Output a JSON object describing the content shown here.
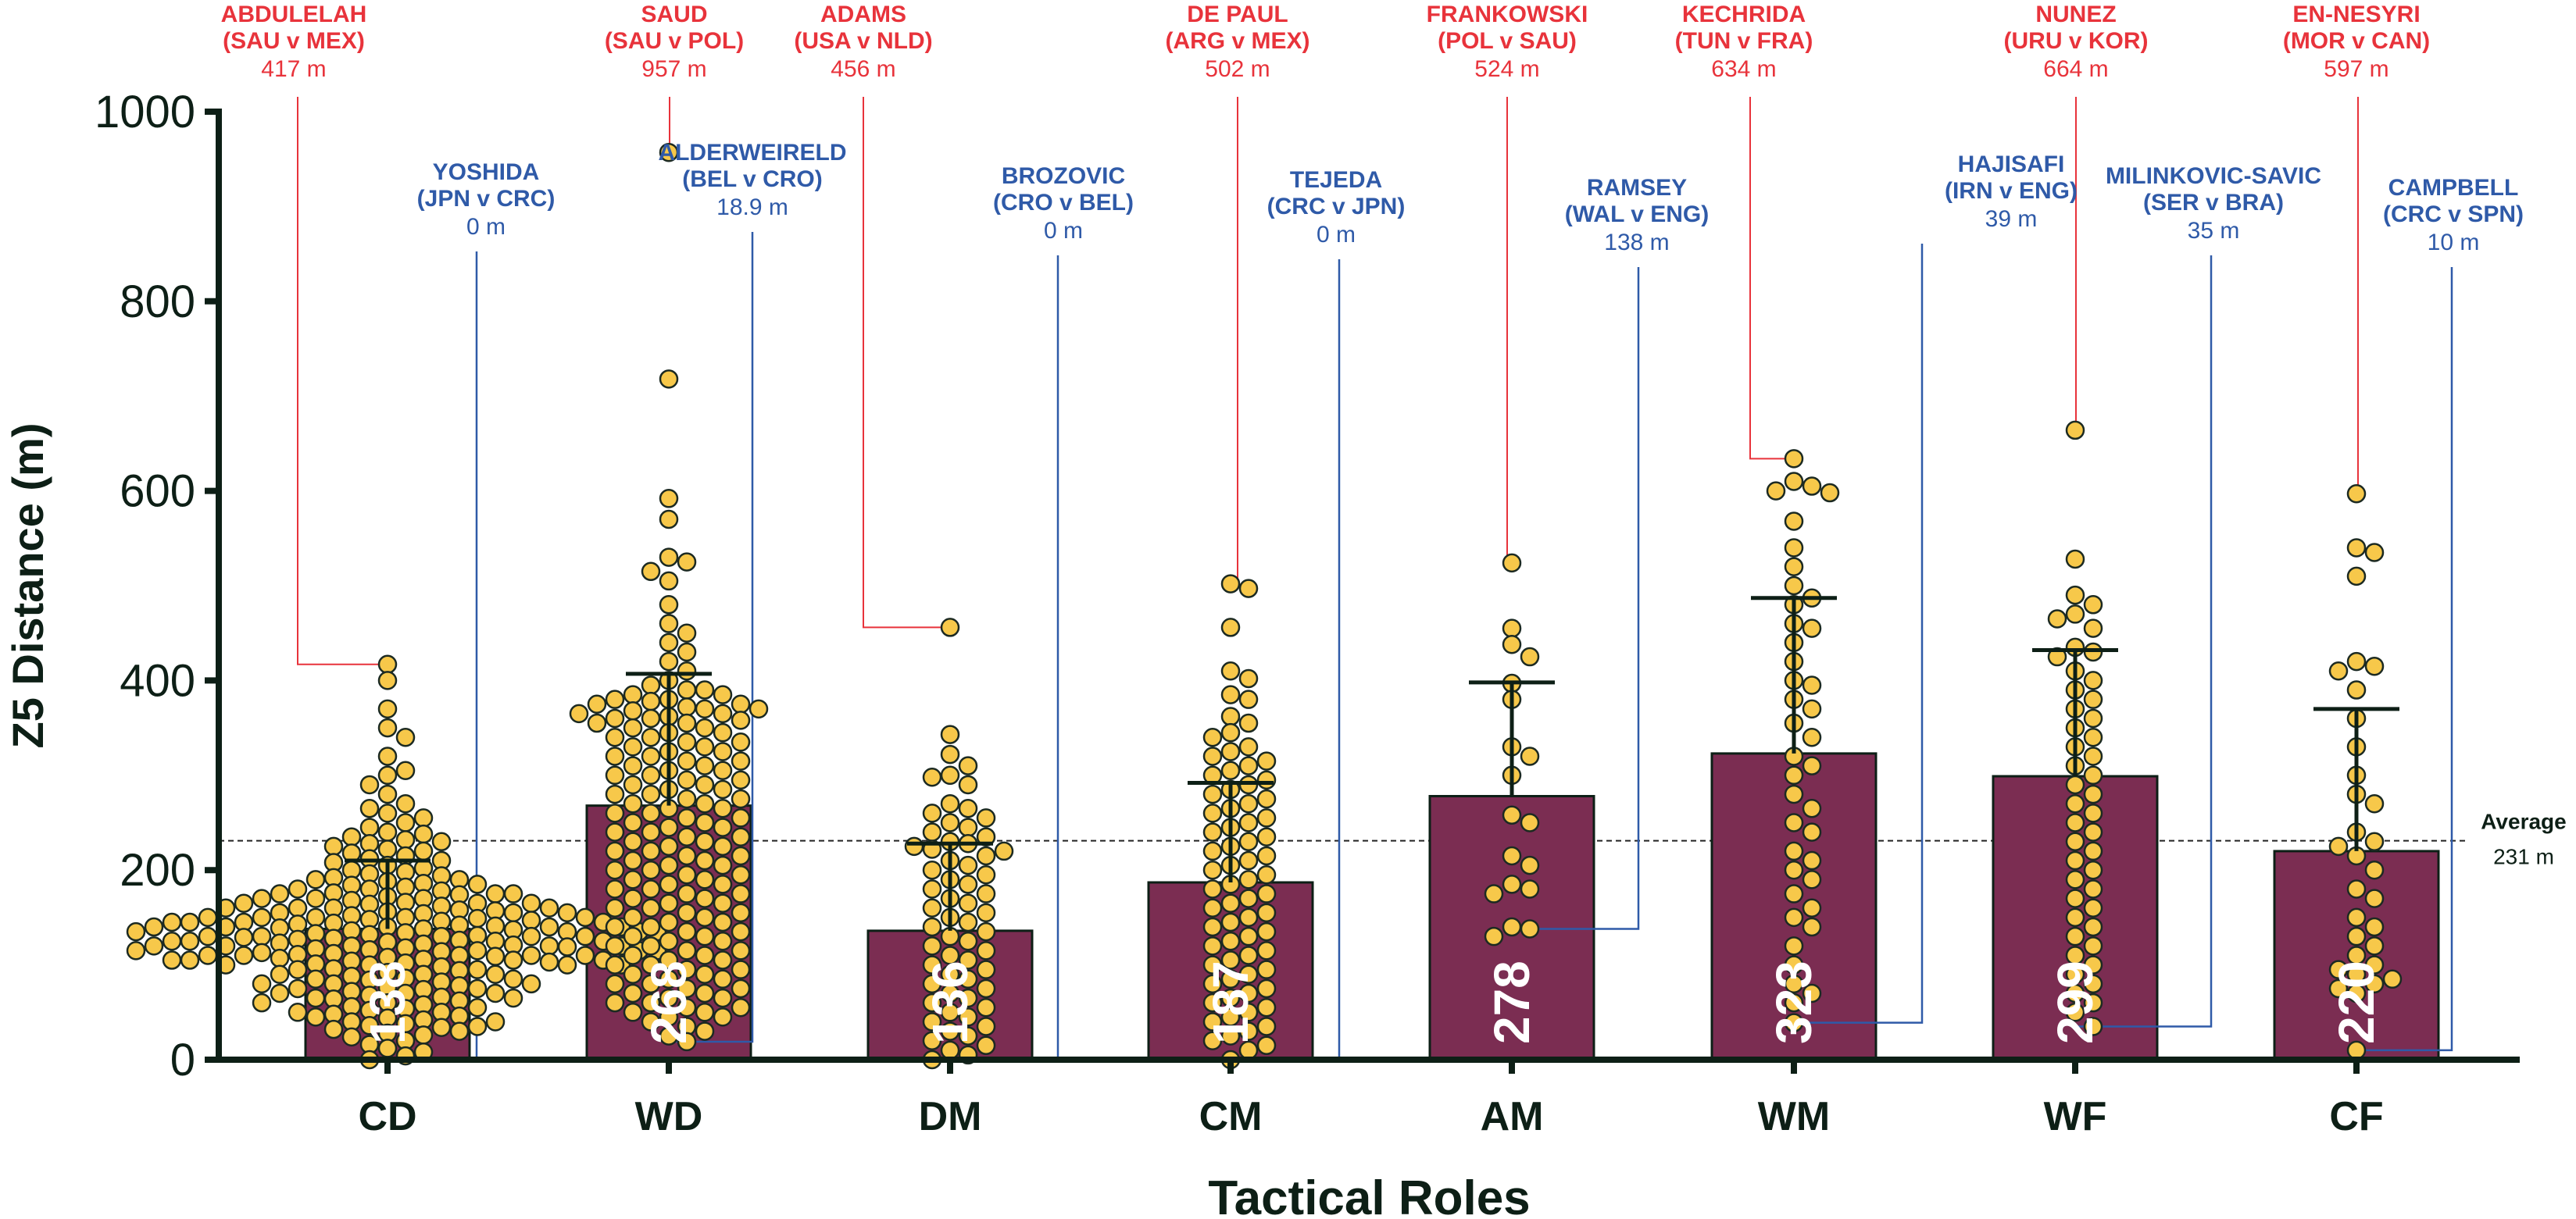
{
  "chart_data": {
    "type": "bar",
    "title": "",
    "xlabel": "Tactical Roles",
    "ylabel": "Z5 Distance (m)",
    "ylim": [
      0,
      1000
    ],
    "yticks": [
      0,
      200,
      400,
      600,
      800,
      1000
    ],
    "grid": false,
    "categories": [
      "CD",
      "WD",
      "DM",
      "CM",
      "AM",
      "WM",
      "WF",
      "CF"
    ],
    "values": [
      138,
      268,
      136,
      187,
      278,
      323,
      299,
      220
    ],
    "value_labels": [
      "138",
      "268",
      "136",
      "187",
      "278",
      "323",
      "299",
      "220"
    ],
    "error_upper": [
      210,
      407,
      228,
      292,
      398,
      487,
      432,
      370
    ],
    "bar_color": "#7b2d52",
    "point_color": "#f7c84a",
    "reference_line": {
      "label": "Average",
      "value": 231,
      "value_label": "231 m"
    },
    "max_annotations": [
      {
        "player": "ABDULELAH",
        "match": "(SAU v MEX)",
        "distance": 417,
        "distance_label": "417 m"
      },
      {
        "player": "SAUD",
        "match": "(SAU v POL)",
        "distance": 957,
        "distance_label": "957 m"
      },
      {
        "player": "ADAMS",
        "match": "(USA v NLD)",
        "distance": 456,
        "distance_label": "456 m"
      },
      {
        "player": "DE PAUL",
        "match": "(ARG v MEX)",
        "distance": 502,
        "distance_label": "502 m"
      },
      {
        "player": "FRANKOWSKI",
        "match": "(POL v SAU)",
        "distance": 524,
        "distance_label": "524 m"
      },
      {
        "player": "KECHRIDA",
        "match": "(TUN v FRA)",
        "distance": 634,
        "distance_label": "634 m"
      },
      {
        "player": "NUNEZ",
        "match": "(URU v KOR)",
        "distance": 664,
        "distance_label": "664 m"
      },
      {
        "player": "EN-NESYRI",
        "match": "(MOR v CAN)",
        "distance": 597,
        "distance_label": "597 m"
      }
    ],
    "min_annotations": [
      {
        "player": "YOSHIDA",
        "match": "(JPN v CRC)",
        "distance": 0,
        "distance_label": "0 m"
      },
      {
        "player": "ALDERWEIRELD",
        "match": "(BEL v CRO)",
        "distance": 18.9,
        "distance_label": "18.9 m"
      },
      {
        "player": "BROZOVIC",
        "match": "(CRO v BEL)",
        "distance": 0,
        "distance_label": "0 m"
      },
      {
        "player": "TEJEDA",
        "match": "(CRC v JPN)",
        "distance": 0,
        "distance_label": "0 m"
      },
      {
        "player": "RAMSEY",
        "match": "(WAL v ENG)",
        "distance": 138,
        "distance_label": "138 m"
      },
      {
        "player": "HAJISAFI",
        "match": "(IRN v ENG)",
        "distance": 39,
        "distance_label": "39 m"
      },
      {
        "player": "MILINKOVIC-SAVIC",
        "match": "(SER v BRA)",
        "distance": 35,
        "distance_label": "35 m"
      },
      {
        "player": "CAMPBELL",
        "match": "(CRC v SPN)",
        "distance": 10,
        "distance_label": "10 m"
      }
    ],
    "max_color": "#e8333b",
    "min_color": "#2f5aa8",
    "points": {
      "CD": [
        417,
        400,
        370,
        350,
        340,
        320,
        305,
        300,
        290,
        280,
        270,
        265,
        260,
        255,
        250,
        245,
        240,
        238,
        235,
        232,
        230,
        228,
        225,
        222,
        220,
        218,
        215,
        212,
        210,
        208,
        205,
        202,
        200,
        198,
        196,
        194,
        192,
        190,
        188,
        186,
        184,
        182,
        180,
        178,
        176,
        175,
        174,
        172,
        170,
        168,
        166,
        165,
        164,
        162,
        160,
        158,
        157,
        156,
        155,
        154,
        152,
        150,
        149,
        148,
        147,
        146,
        145,
        144,
        143,
        142,
        141,
        140,
        139,
        138,
        137,
        136,
        135,
        134,
        133,
        132,
        131,
        130,
        129,
        128,
        127,
        126,
        125,
        124,
        123,
        122,
        121,
        120,
        119,
        118,
        117,
        116,
        115,
        114,
        113,
        112,
        111,
        110,
        109,
        108,
        107,
        106,
        105,
        104,
        103,
        102,
        101,
        100,
        98,
        96,
        94,
        92,
        90,
        88,
        86,
        84,
        82,
        80,
        78,
        76,
        74,
        72,
        70,
        68,
        66,
        64,
        62,
        60,
        58,
        56,
        54,
        52,
        50,
        48,
        46,
        44,
        42,
        40,
        38,
        36,
        34,
        32,
        30,
        28,
        26,
        24,
        20,
        16,
        12,
        8,
        4,
        0,
        150,
        145,
        140,
        135,
        130,
        125,
        120,
        115,
        110,
        105,
        100,
        95,
        90,
        85,
        80,
        75,
        70,
        65,
        160,
        155,
        150,
        145,
        140,
        135,
        130,
        125,
        120,
        115,
        110,
        105,
        170,
        165,
        160,
        150,
        140,
        130,
        120,
        110,
        100,
        90,
        80,
        70,
        60,
        50,
        40,
        180,
        175,
        170,
        160,
        150,
        140,
        130,
        120,
        110,
        100,
        190,
        185,
        175,
        165,
        155,
        145,
        135,
        125,
        115,
        105,
        95,
        85,
        75,
        65,
        55,
        45,
        35
      ],
      "WD": [
        957,
        718,
        592,
        570,
        530,
        525,
        515,
        505,
        480,
        460,
        450,
        440,
        430,
        420,
        410,
        400,
        395,
        390,
        385,
        380,
        378,
        375,
        372,
        370,
        368,
        365,
        362,
        360,
        358,
        355,
        350,
        345,
        340,
        335,
        330,
        325,
        320,
        315,
        310,
        305,
        300,
        295,
        290,
        285,
        280,
        275,
        270,
        265,
        260,
        255,
        250,
        245,
        240,
        235,
        230,
        225,
        220,
        215,
        210,
        205,
        200,
        195,
        190,
        185,
        180,
        175,
        170,
        165,
        160,
        155,
        150,
        145,
        140,
        135,
        130,
        125,
        120,
        115,
        110,
        105,
        100,
        95,
        90,
        85,
        80,
        75,
        70,
        65,
        60,
        55,
        50,
        45,
        40,
        35,
        30,
        25,
        19,
        385,
        375,
        365,
        355,
        345,
        335,
        325,
        315,
        305,
        295,
        285,
        275,
        265,
        255,
        245,
        235,
        225,
        215,
        205,
        195,
        185,
        175,
        165,
        155,
        145,
        135,
        125,
        115,
        105,
        95,
        85,
        75,
        65,
        55,
        45,
        390,
        380,
        370,
        360,
        350,
        340,
        330,
        320,
        310,
        300,
        290,
        280,
        270,
        260,
        250,
        240,
        230,
        220,
        210,
        200,
        190,
        180,
        170,
        160,
        150,
        140,
        130,
        120,
        110,
        100,
        90,
        80,
        70,
        60,
        50
      ],
      "DM": [
        456,
        343,
        322,
        310,
        300,
        298,
        290,
        270,
        265,
        260,
        255,
        250,
        245,
        240,
        235,
        230,
        228,
        225,
        222,
        220,
        215,
        210,
        205,
        200,
        195,
        190,
        185,
        180,
        175,
        170,
        165,
        160,
        155,
        150,
        145,
        140,
        135,
        130,
        125,
        120,
        115,
        110,
        105,
        100,
        95,
        90,
        85,
        80,
        75,
        70,
        65,
        60,
        55,
        50,
        45,
        40,
        35,
        30,
        25,
        20,
        15,
        10,
        5,
        0
      ],
      "CM": [
        502,
        497,
        456,
        410,
        402,
        385,
        380,
        362,
        355,
        345,
        340,
        330,
        325,
        320,
        315,
        310,
        305,
        300,
        295,
        290,
        285,
        280,
        275,
        270,
        265,
        260,
        255,
        250,
        245,
        240,
        235,
        230,
        225,
        220,
        215,
        210,
        205,
        200,
        195,
        190,
        185,
        180,
        175,
        170,
        165,
        160,
        155,
        150,
        145,
        140,
        135,
        130,
        125,
        120,
        115,
        110,
        105,
        100,
        95,
        90,
        85,
        80,
        75,
        70,
        65,
        60,
        55,
        50,
        45,
        40,
        35,
        30,
        25,
        20,
        15,
        10,
        0
      ],
      "AM": [
        524,
        455,
        438,
        425,
        397,
        380,
        330,
        320,
        300,
        258,
        250,
        215,
        205,
        185,
        180,
        175,
        140,
        138,
        130
      ],
      "WM": [
        634,
        610,
        605,
        600,
        598,
        568,
        540,
        520,
        500,
        487,
        480,
        460,
        455,
        440,
        420,
        400,
        395,
        380,
        370,
        355,
        340,
        320,
        310,
        300,
        280,
        265,
        250,
        240,
        220,
        210,
        200,
        190,
        175,
        160,
        150,
        140,
        120,
        100,
        80,
        70,
        60,
        39
      ],
      "WF": [
        664,
        528,
        490,
        480,
        470,
        465,
        455,
        435,
        430,
        425,
        410,
        400,
        390,
        380,
        370,
        360,
        350,
        340,
        330,
        320,
        310,
        300,
        290,
        280,
        270,
        260,
        250,
        240,
        230,
        220,
        210,
        200,
        190,
        180,
        170,
        160,
        150,
        140,
        130,
        120,
        110,
        100,
        90,
        80,
        70,
        60,
        50,
        35
      ],
      "CF": [
        597,
        540,
        535,
        510,
        420,
        415,
        410,
        390,
        360,
        330,
        300,
        280,
        270,
        240,
        230,
        225,
        215,
        200,
        180,
        170,
        150,
        140,
        130,
        120,
        110,
        100,
        95,
        90,
        85,
        80,
        75,
        70,
        10
      ]
    }
  }
}
